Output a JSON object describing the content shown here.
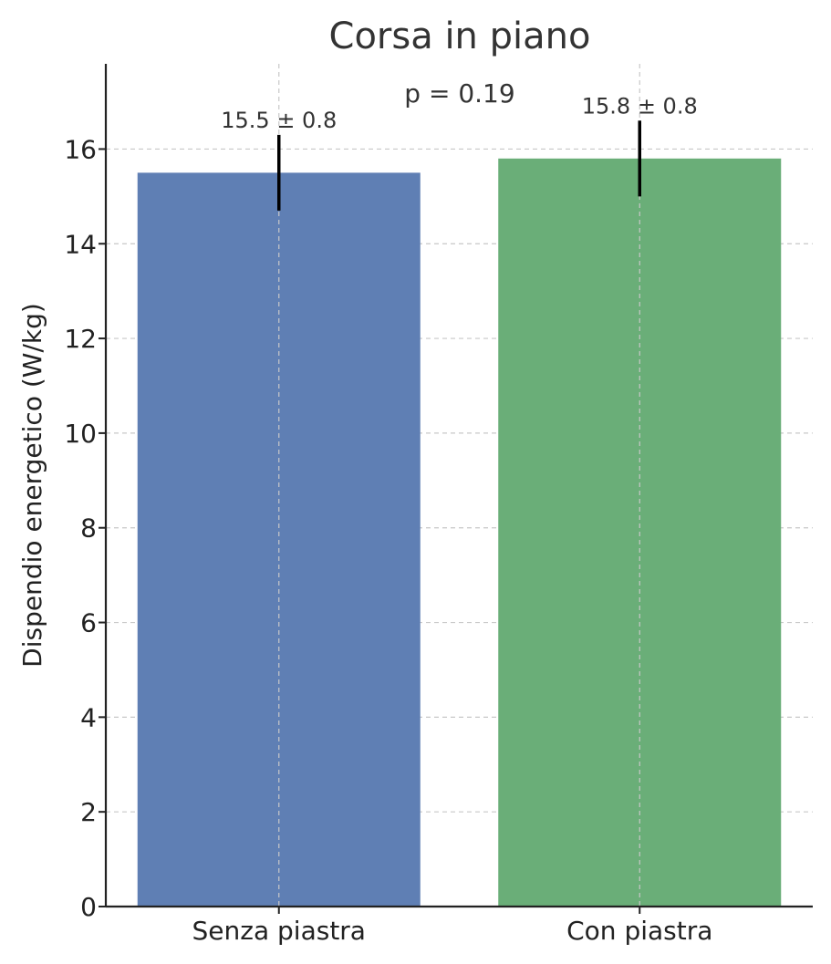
{
  "chart_data": {
    "type": "bar",
    "title": "Corsa in piano",
    "xlabel": "",
    "ylabel": "Dispendio energetico (W/kg)",
    "categories": [
      "Senza piastra",
      "Con piastra"
    ],
    "values": [
      15.5,
      15.8
    ],
    "errors": [
      0.8,
      0.8
    ],
    "data_labels": [
      "15.5 ± 0.8",
      "15.8 ± 0.8"
    ],
    "annotation": "p = 0.19",
    "ylim": [
      0,
      17.8
    ],
    "yticks": [
      0,
      2,
      4,
      6,
      8,
      10,
      12,
      14,
      16
    ],
    "grid": true,
    "colors": [
      "#5f7fb4",
      "#6aae78"
    ]
  }
}
